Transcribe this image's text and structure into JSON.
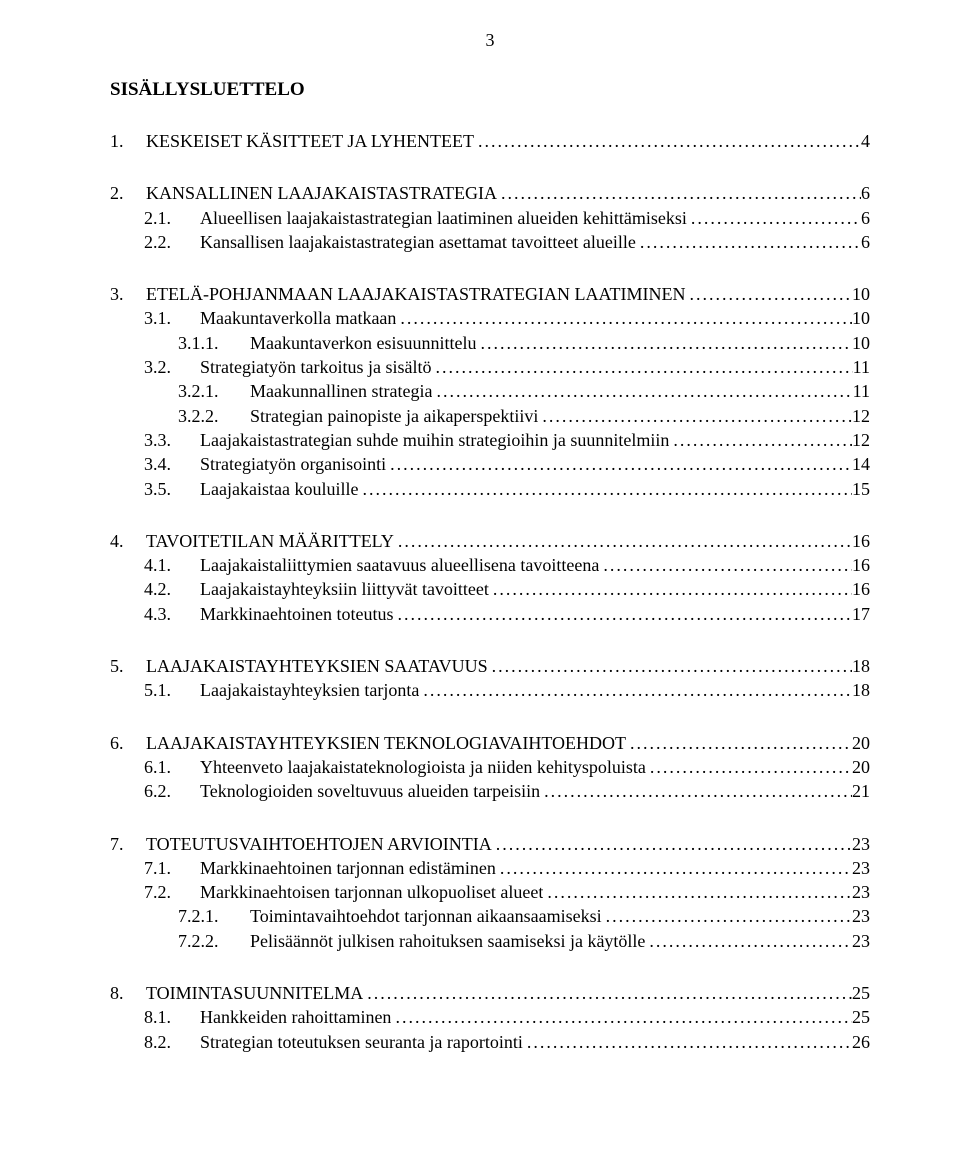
{
  "page_number": "3",
  "toc_title": "SISÄLLYSLUETTELO",
  "groups": [
    [
      {
        "indent": 0,
        "num": "1.",
        "label": "KESKEISET KÄSITTEET JA LYHENTEET",
        "page": "4"
      }
    ],
    [
      {
        "indent": 0,
        "num": "2.",
        "label": "KANSALLINEN LAAJAKAISTASTRATEGIA",
        "page": "6"
      },
      {
        "indent": 1,
        "num": "2.1.",
        "label": "Alueellisen laajakaistastrategian laatiminen alueiden kehittämiseksi",
        "page": "6"
      },
      {
        "indent": 1,
        "num": "2.2.",
        "label": "Kansallisen laajakaistastrategian asettamat tavoitteet alueille",
        "page": "6"
      }
    ],
    [
      {
        "indent": 0,
        "num": "3.",
        "label": "ETELÄ-POHJANMAAN LAAJAKAISTASTRATEGIAN LAATIMINEN",
        "page": "10"
      },
      {
        "indent": 1,
        "num": "3.1.",
        "label": "Maakuntaverkolla matkaan",
        "page": "10"
      },
      {
        "indent": 2,
        "num": "3.1.1.",
        "label": "Maakuntaverkon esisuunnittelu",
        "page": "10"
      },
      {
        "indent": 1,
        "num": "3.2.",
        "label": "Strategiatyön tarkoitus ja sisältö",
        "page": "11"
      },
      {
        "indent": 2,
        "num": "3.2.1.",
        "label": "Maakunnallinen strategia",
        "page": "11"
      },
      {
        "indent": 2,
        "num": "3.2.2.",
        "label": "Strategian painopiste ja aikaperspektiivi",
        "page": "12"
      },
      {
        "indent": 1,
        "num": "3.3.",
        "label": "Laajakaistastrategian suhde muihin strategioihin ja suunnitelmiin",
        "page": "12"
      },
      {
        "indent": 1,
        "num": "3.4.",
        "label": "Strategiatyön organisointi",
        "page": "14"
      },
      {
        "indent": 1,
        "num": "3.5.",
        "label": "Laajakaistaa kouluille",
        "page": "15"
      }
    ],
    [
      {
        "indent": 0,
        "num": "4.",
        "label": "TAVOITETILAN MÄÄRITTELY",
        "page": "16"
      },
      {
        "indent": 1,
        "num": "4.1.",
        "label": "Laajakaistaliittymien saatavuus alueellisena tavoitteena",
        "page": "16"
      },
      {
        "indent": 1,
        "num": "4.2.",
        "label": "Laajakaistayhteyksiin liittyvät tavoitteet",
        "page": "16"
      },
      {
        "indent": 1,
        "num": "4.3.",
        "label": "Markkinaehtoinen toteutus",
        "page": "17"
      }
    ],
    [
      {
        "indent": 0,
        "num": "5.",
        "label": "LAAJAKAISTAYHTEYKSIEN SAATAVUUS",
        "page": "18"
      },
      {
        "indent": 1,
        "num": "5.1.",
        "label": "Laajakaistayhteyksien tarjonta",
        "page": "18"
      }
    ],
    [
      {
        "indent": 0,
        "num": "6.",
        "label": "LAAJAKAISTAYHTEYKSIEN TEKNOLOGIAVAIHTOEHDOT",
        "page": "20"
      },
      {
        "indent": 1,
        "num": "6.1.",
        "label": "Yhteenveto laajakaistateknologioista ja niiden kehityspoluista",
        "page": "20"
      },
      {
        "indent": 1,
        "num": "6.2.",
        "label": "Teknologioiden soveltuvuus alueiden tarpeisiin",
        "page": "21"
      }
    ],
    [
      {
        "indent": 0,
        "num": "7.",
        "label": "TOTEUTUSVAIHTOEHTOJEN ARVIOINTIA",
        "page": "23"
      },
      {
        "indent": 1,
        "num": "7.1.",
        "label": "Markkinaehtoinen tarjonnan edistäminen",
        "page": "23"
      },
      {
        "indent": 1,
        "num": "7.2.",
        "label": "Markkinaehtoisen tarjonnan ulkopuoliset alueet",
        "page": "23"
      },
      {
        "indent": 2,
        "num": "7.2.1.",
        "label": "Toimintavaihtoehdot tarjonnan aikaansaamiseksi",
        "page": "23"
      },
      {
        "indent": 2,
        "num": "7.2.2.",
        "label": "Pelisäännöt julkisen rahoituksen saamiseksi ja käytölle",
        "page": "23"
      }
    ],
    [
      {
        "indent": 0,
        "num": "8.",
        "label": "TOIMINTASUUNNITELMA",
        "page": "25"
      },
      {
        "indent": 1,
        "num": "8.1.",
        "label": "Hankkeiden rahoittaminen",
        "page": "25"
      },
      {
        "indent": 1,
        "num": "8.2.",
        "label": "Strategian toteutuksen seuranta ja raportointi",
        "page": "26"
      }
    ]
  ]
}
